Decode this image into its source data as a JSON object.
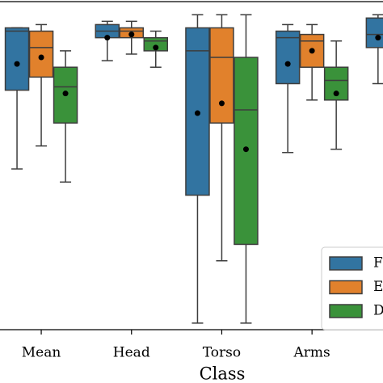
{
  "chart_data": {
    "type": "box",
    "x_label": "Class",
    "categories": [
      "Mean",
      "Head",
      "Torso",
      "Arms",
      null
    ],
    "ylim": [
      0,
      100
    ],
    "legend": "lower right",
    "series": [
      {
        "name": "F",
        "color": "#3274a1",
        "min": [
          49,
          82,
          2,
          54,
          75
        ],
        "q1": [
          73,
          89,
          41,
          75,
          86
        ],
        "median": [
          91,
          91,
          85,
          89,
          90
        ],
        "q3": [
          92,
          93,
          92,
          91,
          95
        ],
        "max": [
          92,
          94,
          96,
          93,
          96
        ],
        "mean": [
          81,
          89,
          66,
          81,
          89
        ]
      },
      {
        "name": "E",
        "color": "#e1812c",
        "min": [
          56,
          84,
          21,
          70,
          null
        ],
        "q1": [
          77,
          89,
          63,
          80,
          null
        ],
        "median": [
          86,
          91,
          83,
          88,
          null
        ],
        "q3": [
          91,
          92,
          92,
          90,
          null
        ],
        "max": [
          93,
          94,
          96,
          93,
          null
        ],
        "mean": [
          83,
          90,
          69,
          85,
          null
        ]
      },
      {
        "name": "D",
        "color": "#3a923a",
        "min": [
          45,
          80,
          2,
          55,
          null
        ],
        "q1": [
          63,
          85,
          26,
          70,
          null
        ],
        "median": [
          74,
          88,
          67,
          76,
          null
        ],
        "q3": [
          80,
          89,
          83,
          80,
          null
        ],
        "max": [
          85,
          91,
          96,
          88,
          null
        ],
        "mean": [
          72,
          86,
          55,
          72,
          null
        ]
      }
    ]
  }
}
